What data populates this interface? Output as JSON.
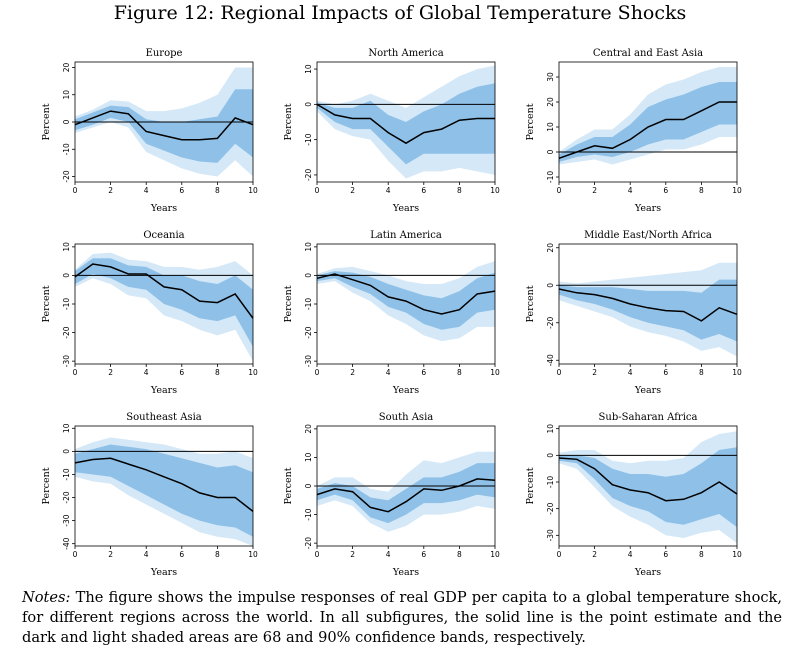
{
  "figure": {
    "title": "Figure 12: Regional Impacts of Global Temperature Shocks",
    "notes_label": "Notes:",
    "notes_text": "The figure shows the impulse responses of real GDP per capita to a global temperature shock, for different regions across the world. In all subfigures, the solid line is the point estimate and the dark and light shaded areas are 68 and 90% confidence bands, respectively."
  },
  "colors": {
    "dark_band": "#8fc1e8",
    "light_band": "#d4e8f7",
    "line": "#000000",
    "frame": "#000000"
  },
  "chart_data": [
    {
      "type": "line",
      "title": "Europe",
      "xlabel": "Years",
      "ylabel": "Percent",
      "xlim": [
        0,
        10
      ],
      "ylim": [
        -22,
        22
      ],
      "xticks": [
        0,
        2,
        4,
        6,
        8,
        10
      ],
      "yticks": [
        -20,
        -10,
        0,
        10,
        20
      ],
      "x": [
        0,
        1,
        2,
        3,
        4,
        5,
        6,
        7,
        8,
        9,
        10
      ],
      "estimate": [
        -1,
        1.5,
        4,
        3,
        -3.5,
        -5,
        -6.5,
        -6.5,
        -6,
        1.5,
        -1
      ],
      "band68": {
        "lower": [
          -3,
          -1,
          1.5,
          0,
          -8,
          -10.5,
          -13,
          -14.5,
          -15,
          -8,
          -13
        ],
        "upper": [
          1,
          3.5,
          6,
          5.5,
          1,
          0,
          0,
          1,
          2,
          12,
          12
        ]
      },
      "band90": {
        "lower": [
          -4,
          -2,
          0,
          -2,
          -11,
          -14,
          -17,
          -19,
          -20,
          -14,
          -20
        ],
        "upper": [
          2,
          4.5,
          8,
          7.5,
          4,
          4,
          5,
          7,
          10,
          20,
          20
        ]
      }
    },
    {
      "type": "line",
      "title": "North America",
      "xlabel": "Years",
      "ylabel": "Percent",
      "xlim": [
        0,
        10
      ],
      "ylim": [
        -22,
        12
      ],
      "xticks": [
        0,
        2,
        4,
        6,
        8,
        10
      ],
      "yticks": [
        -20,
        -10,
        0,
        10
      ],
      "x": [
        0,
        1,
        2,
        3,
        4,
        5,
        6,
        7,
        8,
        9,
        10
      ],
      "estimate": [
        0,
        -3,
        -4,
        -4,
        -8,
        -11,
        -8,
        -7,
        -4.5,
        -4,
        -4
      ],
      "band68": {
        "lower": [
          -1,
          -5,
          -7,
          -7,
          -12,
          -17,
          -14,
          -14,
          -14,
          -14,
          -14
        ],
        "upper": [
          0.5,
          -1,
          -1,
          1,
          -3,
          -5,
          -2,
          0,
          3,
          5,
          6
        ]
      },
      "band90": {
        "lower": [
          -2,
          -7,
          -9,
          -10,
          -16,
          -21,
          -19,
          -19,
          -18,
          -19,
          -20
        ],
        "upper": [
          1,
          0,
          1,
          3,
          1,
          -1,
          2,
          5,
          8,
          10,
          11
        ]
      }
    },
    {
      "type": "line",
      "title": "Central and East Asia",
      "xlabel": "Years",
      "ylabel": "Percent",
      "xlim": [
        0,
        10
      ],
      "ylim": [
        -12,
        36
      ],
      "xticks": [
        0,
        2,
        4,
        6,
        8,
        10
      ],
      "yticks": [
        -10,
        0,
        10,
        20,
        30
      ],
      "x": [
        0,
        1,
        2,
        3,
        4,
        5,
        6,
        7,
        8,
        9,
        10
      ],
      "estimate": [
        -2.5,
        0,
        2.5,
        1.5,
        5,
        10,
        13,
        13,
        16.5,
        20,
        20
      ],
      "band68": {
        "lower": [
          -4,
          -2,
          -1,
          -2,
          0,
          3,
          5,
          5,
          8,
          11,
          11
        ],
        "upper": [
          -1,
          3,
          6,
          6,
          11,
          18,
          21,
          23,
          26,
          28,
          28
        ]
      },
      "band90": {
        "lower": [
          -5,
          -4,
          -3,
          -5,
          -3,
          -1,
          1,
          1,
          3,
          6,
          6
        ],
        "upper": [
          0,
          5,
          9,
          9,
          15,
          23,
          27,
          29,
          32,
          34,
          34
        ]
      }
    },
    {
      "type": "line",
      "title": "Oceania",
      "xlabel": "Years",
      "ylabel": "Percent",
      "xlim": [
        0,
        10
      ],
      "ylim": [
        -31,
        11
      ],
      "xticks": [
        0,
        2,
        4,
        6,
        8,
        10
      ],
      "yticks": [
        -30,
        -20,
        -10,
        0,
        10
      ],
      "x": [
        0,
        1,
        2,
        3,
        4,
        5,
        6,
        7,
        8,
        9,
        10
      ],
      "estimate": [
        -0.5,
        4,
        3,
        0.5,
        0.5,
        -4,
        -5,
        -9,
        -9.5,
        -6.5,
        -15
      ],
      "band68": {
        "lower": [
          -3,
          0.5,
          -1,
          -4,
          -5,
          -10,
          -12,
          -15,
          -16,
          -14,
          -25
        ],
        "upper": [
          1.5,
          6,
          6,
          3.5,
          3,
          0,
          0,
          -2,
          -3,
          0,
          -5
        ]
      },
      "band90": {
        "lower": [
          -4,
          -1,
          -3,
          -7,
          -8,
          -14,
          -16,
          -19,
          -21,
          -19,
          -30
        ],
        "upper": [
          2,
          7.5,
          8,
          5.5,
          5,
          3,
          3,
          2,
          3,
          5,
          0
        ]
      }
    },
    {
      "type": "line",
      "title": "Latin America",
      "xlabel": "Years",
      "ylabel": "Percent",
      "xlim": [
        0,
        10
      ],
      "ylim": [
        -31,
        11
      ],
      "xticks": [
        0,
        2,
        4,
        6,
        8,
        10
      ],
      "yticks": [
        -30,
        -20,
        -10,
        0,
        10
      ],
      "x": [
        0,
        1,
        2,
        3,
        4,
        5,
        6,
        7,
        8,
        9,
        10
      ],
      "estimate": [
        -1,
        0.5,
        -1.5,
        -3.5,
        -7.5,
        -9,
        -12,
        -13.5,
        -12,
        -6.5,
        -5.5
      ],
      "band68": {
        "lower": [
          -2,
          -1,
          -4,
          -6.5,
          -11,
          -13,
          -17,
          -19,
          -18,
          -13,
          -12
        ],
        "upper": [
          0,
          1.5,
          1,
          -0.5,
          -3,
          -5,
          -7,
          -8,
          -5.5,
          -1,
          1
        ]
      },
      "band90": {
        "lower": [
          -3,
          -2,
          -6,
          -9,
          -14,
          -17,
          -21,
          -23,
          -22,
          -18,
          -18
        ],
        "upper": [
          0.5,
          2.5,
          3,
          1.5,
          0,
          -2,
          -3,
          -3,
          -1,
          3,
          5
        ]
      }
    },
    {
      "type": "line",
      "title": "Middle East/North Africa",
      "xlabel": "Years",
      "ylabel": "Percent",
      "xlim": [
        0,
        10
      ],
      "ylim": [
        -42,
        22
      ],
      "xticks": [
        0,
        2,
        4,
        6,
        8,
        10
      ],
      "yticks": [
        -40,
        -20,
        0,
        20
      ],
      "x": [
        0,
        1,
        2,
        3,
        4,
        5,
        6,
        7,
        8,
        9,
        10
      ],
      "estimate": [
        -2,
        -4,
        -5,
        -7,
        -10,
        -12,
        -13.5,
        -14,
        -19,
        -12,
        -15.5
      ],
      "band68": {
        "lower": [
          -5,
          -8,
          -10,
          -13,
          -17,
          -20,
          -22,
          -24,
          -29,
          -26,
          -30
        ],
        "upper": [
          0,
          -1,
          -1,
          -1,
          -2,
          -3,
          -3,
          -3,
          -4,
          3,
          3
        ]
      },
      "band90": {
        "lower": [
          -8,
          -11,
          -14,
          -17,
          -22,
          -25,
          -27,
          -30,
          -35,
          -33,
          -38
        ],
        "upper": [
          2,
          1,
          2,
          3,
          4,
          5,
          6,
          7,
          8,
          12,
          12
        ]
      }
    },
    {
      "type": "line",
      "title": "Southeast Asia",
      "xlabel": "Years",
      "ylabel": "Percent",
      "xlim": [
        0,
        10
      ],
      "ylim": [
        -41,
        11
      ],
      "xticks": [
        0,
        2,
        4,
        6,
        8,
        10
      ],
      "yticks": [
        -40,
        -30,
        -20,
        -10,
        0,
        10
      ],
      "x": [
        0,
        1,
        2,
        3,
        4,
        5,
        6,
        7,
        8,
        9,
        10
      ],
      "estimate": [
        -5,
        -3.5,
        -3,
        -5.5,
        -8,
        -11,
        -14,
        -18,
        -20,
        -20,
        -26
      ],
      "band68": {
        "lower": [
          -9,
          -10,
          -11,
          -15,
          -19,
          -23,
          -27,
          -30,
          -32,
          -33,
          -37
        ],
        "upper": [
          -1,
          1,
          3,
          2,
          1,
          -1,
          -3,
          -5,
          -7,
          -6,
          -9
        ]
      },
      "band90": {
        "lower": [
          -11,
          -13,
          -14,
          -19,
          -23,
          -27,
          -31,
          -35,
          -37,
          -38,
          -41
        ],
        "upper": [
          1,
          4,
          6,
          5,
          4,
          3,
          1,
          -1,
          -1,
          0,
          -3
        ]
      }
    },
    {
      "type": "line",
      "title": "South Asia",
      "xlabel": "Years",
      "ylabel": "Percent",
      "xlim": [
        0,
        10
      ],
      "ylim": [
        -21,
        21
      ],
      "xticks": [
        0,
        2,
        4,
        6,
        8,
        10
      ],
      "yticks": [
        -20,
        -10,
        0,
        10,
        20
      ],
      "x": [
        0,
        1,
        2,
        3,
        4,
        5,
        6,
        7,
        8,
        9,
        10
      ],
      "estimate": [
        -3,
        -1,
        -2,
        -7.5,
        -9,
        -5.5,
        -1,
        -1.5,
        0,
        2.5,
        2
      ],
      "band68": {
        "lower": [
          -5,
          -3,
          -5,
          -11,
          -13,
          -10,
          -6,
          -6,
          -5,
          -3,
          -4
        ],
        "upper": [
          -1,
          1,
          0,
          -4,
          -5,
          -1,
          3,
          3,
          5,
          8,
          8
        ]
      },
      "band90": {
        "lower": [
          -7,
          -5,
          -7,
          -13,
          -16,
          -14,
          -10,
          -10,
          -9,
          -7,
          -8
        ],
        "upper": [
          0,
          3,
          3,
          -1,
          -2,
          4,
          9,
          8,
          10,
          12,
          12
        ]
      }
    },
    {
      "type": "line",
      "title": "Sub-Saharan Africa",
      "xlabel": "Years",
      "ylabel": "Percent",
      "xlim": [
        0,
        10
      ],
      "ylim": [
        -34,
        11
      ],
      "xticks": [
        0,
        2,
        4,
        6,
        8,
        10
      ],
      "yticks": [
        -30,
        -20,
        -10,
        0,
        10
      ],
      "x": [
        0,
        1,
        2,
        3,
        4,
        5,
        6,
        7,
        8,
        9,
        10
      ],
      "estimate": [
        -1,
        -1.5,
        -5,
        -11,
        -13,
        -14,
        -17,
        -16.5,
        -14,
        -10,
        -14.5
      ],
      "band68": {
        "lower": [
          -2,
          -3,
          -9,
          -16,
          -19,
          -21,
          -25,
          -26,
          -24,
          -22,
          -27
        ],
        "upper": [
          0,
          0,
          -1,
          -5,
          -7,
          -7,
          -8,
          -7,
          -3,
          2,
          3
        ]
      },
      "band90": {
        "lower": [
          -3,
          -5,
          -12,
          -19,
          -23,
          -26,
          -30,
          -31,
          -29,
          -28,
          -33
        ],
        "upper": [
          1,
          2,
          2,
          -2,
          -3,
          -2,
          -2,
          -1,
          5,
          8,
          9
        ]
      }
    }
  ]
}
